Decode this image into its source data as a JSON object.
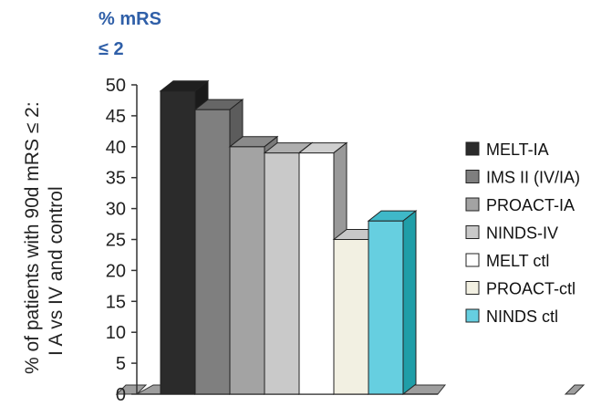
{
  "chart_data": {
    "type": "bar",
    "title": "",
    "unit_label_line1": "% mRS",
    "unit_label_line2": "≤ 2",
    "ylabel_line1": "% of patients with 90d mRS ≤ 2:",
    "ylabel_line2": "I A vs IV and control",
    "xlabel": "",
    "ylim": [
      0,
      50
    ],
    "yticks": [
      0,
      5,
      10,
      15,
      20,
      25,
      30,
      35,
      40,
      45,
      50
    ],
    "legend_position": "right",
    "three_d": true,
    "categories": [
      "MELT-IA",
      "IMS II (IV/IA)",
      "PROACT-IA",
      "NINDS-IV",
      "MELT ctl",
      "PROACT-ctl",
      "NINDS ctl"
    ],
    "values": [
      49,
      46,
      40,
      39,
      39,
      25,
      28
    ],
    "colors": [
      "#2b2b2b",
      "#7f7f7f",
      "#a3a3a3",
      "#c9c9c9",
      "#ffffff",
      "#f2f0e2",
      "#66cfe0"
    ],
    "side_colors": [
      "#1a1a1a",
      "#5c5c5c",
      "#7a7a7a",
      "#9a9a9a",
      "#999999",
      "#9a9a9a",
      "#1f9ea8"
    ],
    "top_colors": [
      "#1f1f1f",
      "#666666",
      "#8a8a8a",
      "#aeaeae",
      "#cfcfcf",
      "#c8c8c8",
      "#3fb8c8"
    ]
  }
}
